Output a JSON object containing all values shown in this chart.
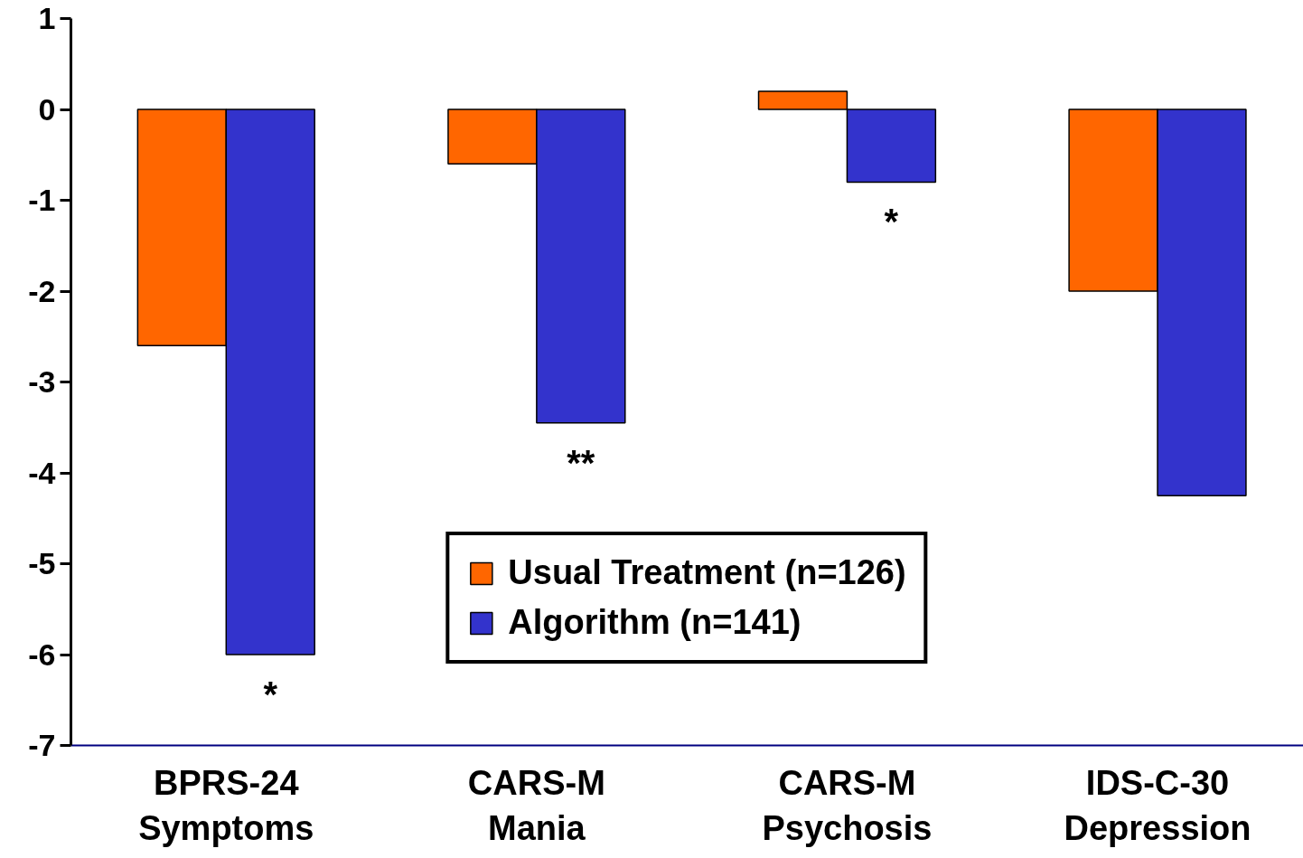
{
  "chart_data": {
    "type": "bar",
    "categories": [
      "BPRS-24\nSymptoms",
      "CARS-M\nMania",
      "CARS-M\nPsychosis",
      "IDS-C-30\nDepression"
    ],
    "series": [
      {
        "name": "Usual Treatment (n=126)",
        "color": "#ff6600",
        "values": [
          -2.6,
          -0.6,
          0.2,
          -2.0
        ]
      },
      {
        "name": "Algorithm (n=141)",
        "color": "#3333cc",
        "values": [
          -6.0,
          -3.45,
          -0.8,
          -4.25
        ]
      }
    ],
    "ylim": [
      -7,
      1
    ],
    "yticks": [
      -7,
      -6,
      -5,
      -4,
      -3,
      -2,
      -1,
      0,
      1
    ],
    "grid": false,
    "legend": "bottom",
    "annotations": [
      {
        "text": "*",
        "x": "BPRS-24\nSymptoms",
        "y": -6.0
      },
      {
        "text": "**",
        "x": "CARS-M\nMania",
        "y": -3.45
      },
      {
        "text": "*",
        "x": "CARS-M\nPsychosis",
        "y": -0.8
      }
    ]
  }
}
